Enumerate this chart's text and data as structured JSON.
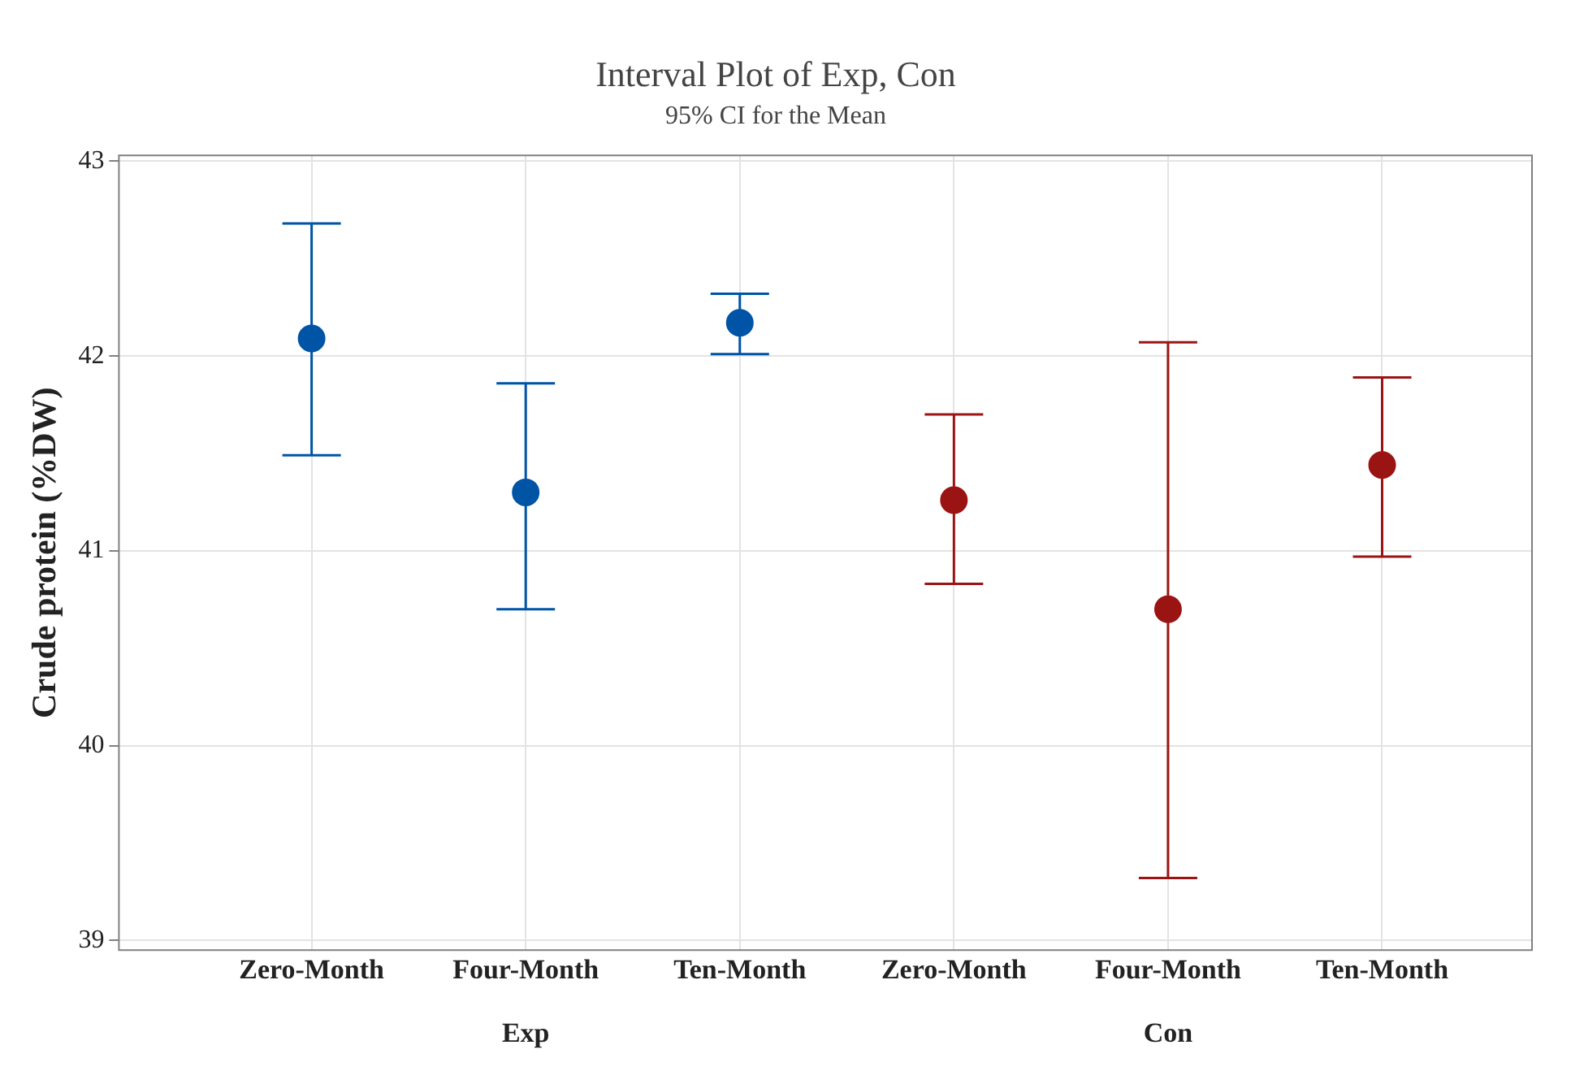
{
  "chart_data": {
    "type": "scatter",
    "title": "Interval Plot of Exp, Con",
    "subtitle": "95% CI for the Mean",
    "ylabel": "Crude protein (%DW)",
    "categories": [
      "Zero-Month",
      "Four-Month",
      "Ten-Month",
      "Zero-Month",
      "Four-Month",
      "Ten-Month"
    ],
    "annotations": [
      "Exp",
      "Con"
    ],
    "series": [
      {
        "color": "#0054a6",
        "values": [
          42.09,
          41.3,
          42.17,
          null,
          null,
          null
        ],
        "errors": [
          [
            41.49,
            42.68
          ],
          [
            40.7,
            41.86
          ],
          [
            42.01,
            42.32
          ],
          null,
          null,
          null
        ]
      },
      {
        "color": "#9b1414",
        "values": [
          null,
          null,
          null,
          41.26,
          40.7,
          41.44
        ],
        "errors": [
          null,
          null,
          null,
          [
            40.83,
            41.7
          ],
          [
            39.32,
            42.07
          ],
          [
            40.97,
            41.89
          ]
        ]
      }
    ],
    "ylim": [
      38.95,
      43.03
    ],
    "yticks": [
      39,
      40,
      41,
      42,
      43
    ],
    "grid": true,
    "legend": false,
    "marker": "circle"
  }
}
